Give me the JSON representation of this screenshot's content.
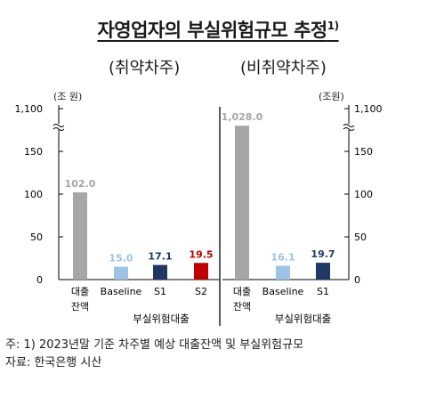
{
  "header": {
    "title": "자영업자의 부실위험규모 추정",
    "title_sup": "1)",
    "left_subtitle": "(취약차주)",
    "right_subtitle": "(비취약차주)",
    "left_unit": "(조 원)",
    "right_unit": "(조원)"
  },
  "chart_data": [
    {
      "type": "bar",
      "panel": "left",
      "categories": [
        "대출\n잔액",
        "Baseline",
        "S1",
        "S2"
      ],
      "group_label": "부실위험대출",
      "values": [
        102.0,
        15.0,
        17.1,
        19.5
      ],
      "value_labels": [
        "102.0",
        "15.0",
        "17.1",
        "19.5"
      ],
      "colors": [
        "#a6a6a6",
        "#9dc3e6",
        "#1f3864",
        "#c00000"
      ],
      "label_colors": [
        "#a6a6a6",
        "#9dc3e6",
        "#1f3864",
        "#c00000"
      ],
      "yticks": [
        "0",
        "50",
        "100",
        "150",
        "1,100"
      ],
      "ylim": [
        0,
        200
      ],
      "axis_break": true
    },
    {
      "type": "bar",
      "panel": "right",
      "categories": [
        "대출\n잔액",
        "Baseline",
        "S1"
      ],
      "group_label": "부실위험대출",
      "values": [
        1028.0,
        16.1,
        19.7
      ],
      "value_labels": [
        "1,028.0",
        "16.1",
        "19.7"
      ],
      "colors": [
        "#a6a6a6",
        "#9dc3e6",
        "#1f3864"
      ],
      "label_colors": [
        "#a6a6a6",
        "#9dc3e6",
        "#1f3864"
      ],
      "yticks": [
        "0",
        "50",
        "100",
        "150",
        "1,100"
      ],
      "ylim": [
        0,
        200
      ],
      "axis_break": true
    }
  ],
  "notes": {
    "note1": "주: 1) 2023년말 기준 차주별 예상 대출잔액 및 부실위험규모",
    "source": "자료: 한국은행 시산"
  }
}
